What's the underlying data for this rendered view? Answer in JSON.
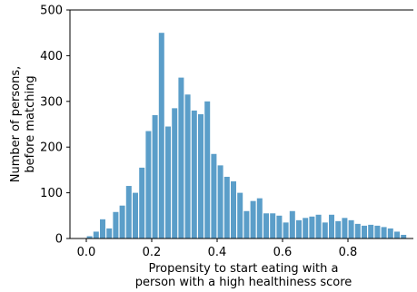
{
  "chart_data": {
    "type": "bar",
    "title": "",
    "xlabel": [
      "Propensity to start eating with a",
      "person with a high healthiness score"
    ],
    "ylabel": [
      "Number of persons,",
      "before matching"
    ],
    "xlim": [
      -0.05,
      1.0
    ],
    "ylim": [
      0,
      500
    ],
    "xticks": [
      0.0,
      0.2,
      0.4,
      0.6,
      0.8
    ],
    "xtick_labels": [
      "0.0",
      "0.2",
      "0.4",
      "0.6",
      "0.8"
    ],
    "yticks": [
      0,
      100,
      200,
      300,
      400,
      500
    ],
    "ytick_labels": [
      "0",
      "100",
      "200",
      "300",
      "400",
      "500"
    ],
    "bar_color": "#5b9ec9",
    "grid": false,
    "bin_width": 0.02,
    "bin_starts": [
      0.0,
      0.02,
      0.04,
      0.06,
      0.08,
      0.1,
      0.12,
      0.14,
      0.16,
      0.18,
      0.2,
      0.22,
      0.24,
      0.26,
      0.28,
      0.3,
      0.32,
      0.34,
      0.36,
      0.38,
      0.4,
      0.42,
      0.44,
      0.46,
      0.48,
      0.5,
      0.52,
      0.54,
      0.56,
      0.58,
      0.6,
      0.62,
      0.64,
      0.66,
      0.68,
      0.7,
      0.72,
      0.74,
      0.76,
      0.78,
      0.8,
      0.82,
      0.84,
      0.86,
      0.88,
      0.9,
      0.92,
      0.94,
      0.96
    ],
    "values": [
      5,
      15,
      42,
      22,
      58,
      72,
      115,
      100,
      155,
      235,
      270,
      450,
      245,
      285,
      352,
      315,
      280,
      272,
      300,
      185,
      160,
      135,
      125,
      100,
      60,
      82,
      88,
      55,
      55,
      50,
      35,
      60,
      40,
      45,
      48,
      52,
      35,
      52,
      38,
      45,
      40,
      32,
      28,
      30,
      28,
      25,
      22,
      15,
      8
    ]
  }
}
